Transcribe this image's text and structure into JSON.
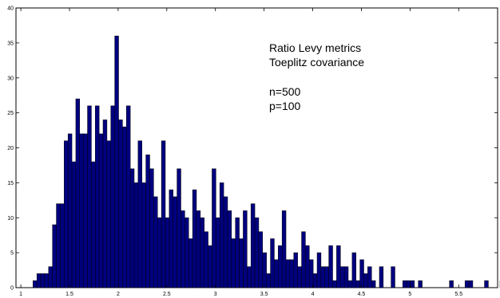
{
  "chart_data": {
    "type": "bar",
    "title": "",
    "xlabel": "",
    "ylabel": "",
    "xlim": [
      0.95,
      5.9
    ],
    "ylim": [
      0,
      40
    ],
    "bin_start": 1.125,
    "bin_width": 0.04,
    "x_ticks": [
      {
        "value": 1,
        "label": "1"
      },
      {
        "value": 1.5,
        "label": "1.5"
      },
      {
        "value": 2,
        "label": "2"
      },
      {
        "value": 2.5,
        "label": "2.5"
      },
      {
        "value": 3,
        "label": "3"
      },
      {
        "value": 3.5,
        "label": "3.5"
      },
      {
        "value": 4,
        "label": "4"
      },
      {
        "value": 4.5,
        "label": "4.5"
      },
      {
        "value": 5,
        "label": "5"
      },
      {
        "value": 5.5,
        "label": "5.5"
      }
    ],
    "y_ticks": [
      {
        "value": 0,
        "label": "0"
      },
      {
        "value": 5,
        "label": "5"
      },
      {
        "value": 10,
        "label": "10"
      },
      {
        "value": 15,
        "label": "15"
      },
      {
        "value": 20,
        "label": "20"
      },
      {
        "value": 25,
        "label": "25"
      },
      {
        "value": 30,
        "label": "30"
      },
      {
        "value": 35,
        "label": "35"
      },
      {
        "value": 40,
        "label": "40"
      }
    ],
    "values": [
      1,
      2,
      2,
      2,
      3,
      9,
      12,
      12,
      21,
      22,
      18,
      27,
      22,
      22,
      26,
      18,
      26,
      22,
      24,
      21,
      26,
      36,
      24,
      23,
      26,
      17,
      15,
      21,
      15,
      19,
      17,
      13,
      10,
      21,
      10,
      14,
      13,
      17,
      11,
      10,
      7,
      14,
      11,
      10,
      8,
      6,
      17,
      10,
      15,
      13,
      11,
      7,
      10,
      7,
      11,
      3,
      12,
      10,
      8,
      5,
      2,
      7,
      4,
      6,
      11,
      4,
      4,
      5,
      3,
      8,
      6,
      4,
      2,
      5,
      3,
      3,
      6,
      1,
      6,
      3,
      3,
      1,
      5,
      1,
      4,
      2,
      3,
      1,
      0,
      3,
      0,
      0,
      3,
      0,
      0,
      1,
      1,
      1,
      0,
      1,
      0,
      0,
      0,
      0,
      0,
      0,
      0,
      1,
      0,
      0,
      0,
      1,
      1,
      0,
      0,
      0,
      1,
      0,
      0,
      0,
      1,
      1,
      1,
      0,
      0,
      0,
      0,
      0,
      0,
      0,
      0,
      0,
      0,
      0,
      0
    ],
    "bar_color": "#00007f",
    "edge_color": "#000000",
    "annotations": [
      "Ratio Levy metrics",
      "Toeplitz covariance",
      "n=500",
      "p=100"
    ],
    "grid": false
  }
}
